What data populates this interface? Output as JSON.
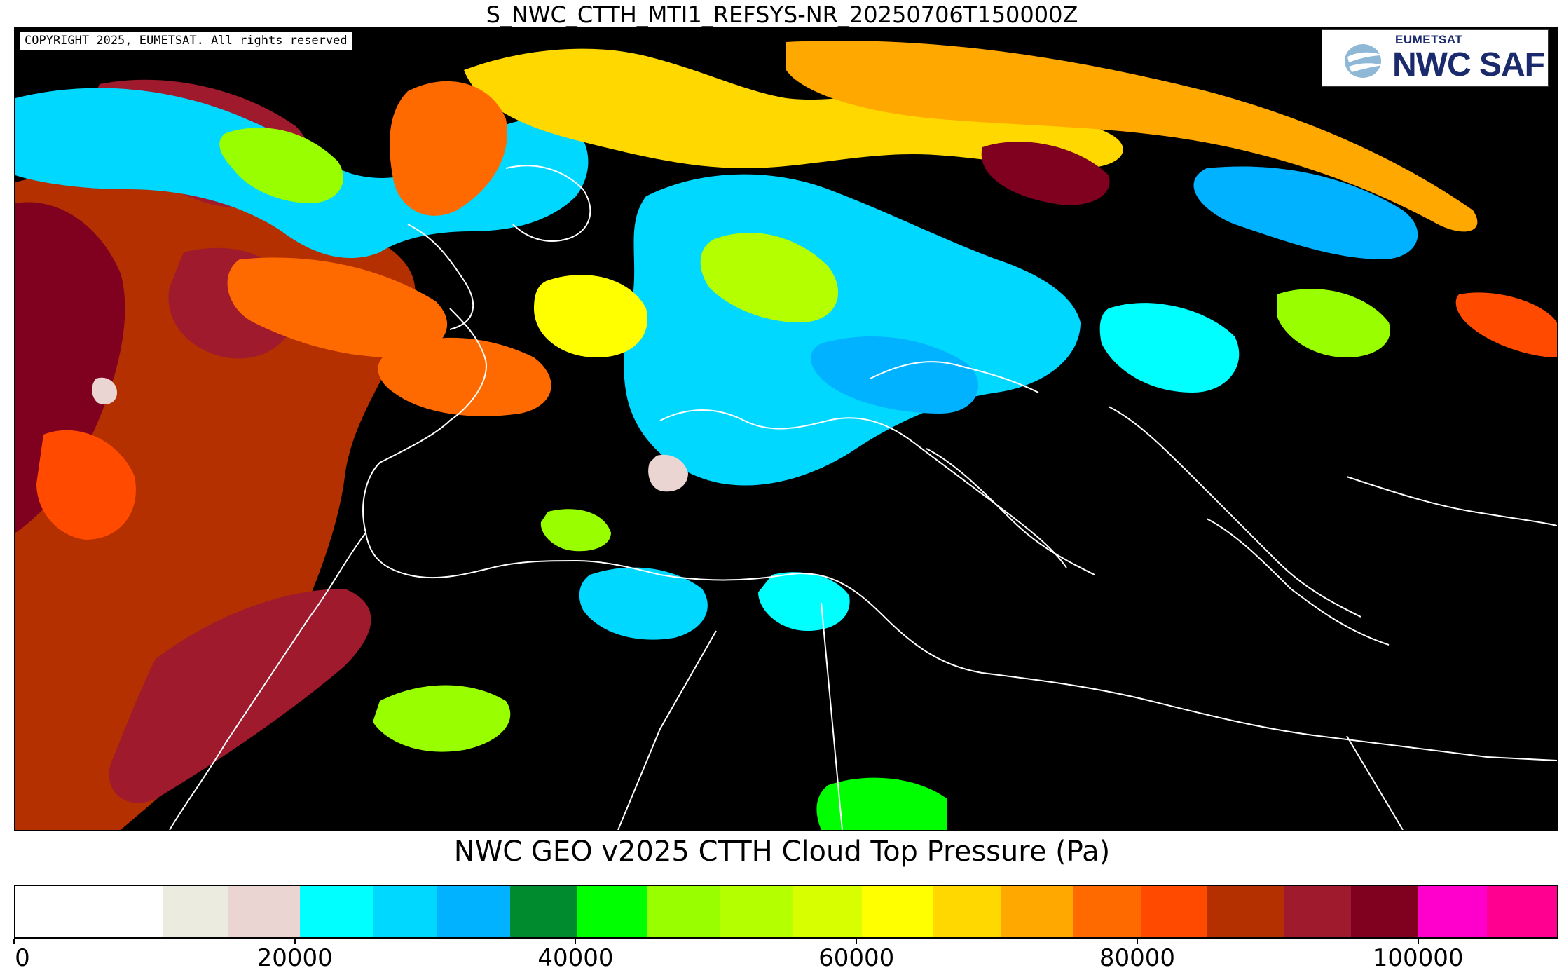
{
  "product_title": "S_NWC_CTTH_MTI1_REFSYS-NR_20250706T150000Z",
  "copyright": "COPYRIGHT 2025, EUMETSAT. All rights reserved",
  "logo": {
    "small_text": "EUMETSAT",
    "big_text": "NWC SAF"
  },
  "colorbar": {
    "title": "NWC GEO v2025 CTTH Cloud Top Pressure (Pa)",
    "range": [
      0,
      110000
    ],
    "tick_labels": [
      "0",
      "20000",
      "40000",
      "60000",
      "80000",
      "100000"
    ],
    "tick_values": [
      0,
      20000,
      40000,
      60000,
      80000,
      100000
    ],
    "segments": [
      {
        "from": 0,
        "to": 10500,
        "color": "#ffffff"
      },
      {
        "from": 10500,
        "to": 15200,
        "color": "#ecebdf"
      },
      {
        "from": 15200,
        "to": 20300,
        "color": "#ead5d2"
      },
      {
        "from": 20300,
        "to": 25500,
        "color": "#00ffff"
      },
      {
        "from": 25500,
        "to": 30100,
        "color": "#00d8ff"
      },
      {
        "from": 30100,
        "to": 35300,
        "color": "#00b2ff"
      },
      {
        "from": 35300,
        "to": 40100,
        "color": "#008c2e"
      },
      {
        "from": 40100,
        "to": 45100,
        "color": "#00ff00"
      },
      {
        "from": 45100,
        "to": 50300,
        "color": "#99ff00"
      },
      {
        "from": 50300,
        "to": 55500,
        "color": "#b4ff00"
      },
      {
        "from": 55500,
        "to": 60400,
        "color": "#d8ff00"
      },
      {
        "from": 60400,
        "to": 65500,
        "color": "#ffff00"
      },
      {
        "from": 65500,
        "to": 70300,
        "color": "#ffd800"
      },
      {
        "from": 70300,
        "to": 75500,
        "color": "#ffa800"
      },
      {
        "from": 75500,
        "to": 80300,
        "color": "#ff6a00"
      },
      {
        "from": 80300,
        "to": 85000,
        "color": "#ff4a00"
      },
      {
        "from": 85000,
        "to": 90500,
        "color": "#b43000"
      },
      {
        "from": 90500,
        "to": 95300,
        "color": "#9e1a2c"
      },
      {
        "from": 95300,
        "to": 100100,
        "color": "#800020"
      },
      {
        "from": 100100,
        "to": 105000,
        "color": "#ff00cc"
      },
      {
        "from": 105000,
        "to": 110000,
        "color": "#ff0090"
      }
    ]
  },
  "map_colors": {
    "background": "#000000",
    "coastline": "#ffffff",
    "low_marine": "#b43000",
    "very_low": "#9e1a2c",
    "mid_orange": "#ff6a00",
    "mid_yellow": "#ffd800",
    "mid_green": "#99ff00",
    "high_cyan": "#00d8ff",
    "high_blue": "#00b2ff",
    "very_high": "#ead5d2"
  }
}
